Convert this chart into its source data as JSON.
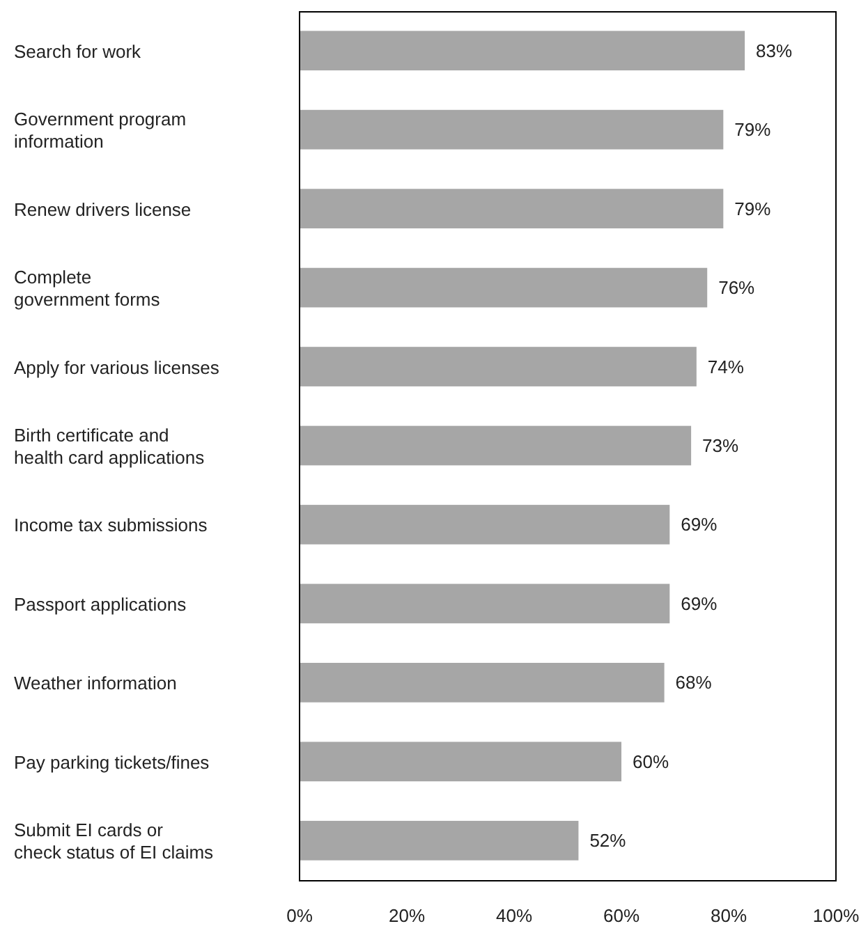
{
  "chart_data": {
    "type": "bar",
    "orientation": "horizontal",
    "categories": [
      "Search for work",
      "Government program\ninformation",
      "Renew drivers license",
      "Complete\ngovernment forms",
      "Apply for various licenses",
      "Birth certificate and\nhealth card applications",
      "Income tax submissions",
      "Passport applications",
      "Weather information",
      "Pay parking tickets/fines",
      "Submit EI cards or\ncheck status of EI claims"
    ],
    "values": [
      83,
      79,
      79,
      76,
      74,
      73,
      69,
      69,
      68,
      60,
      52
    ],
    "value_labels": [
      "83%",
      "79%",
      "79%",
      "76%",
      "74%",
      "73%",
      "69%",
      "69%",
      "68%",
      "60%",
      "52%"
    ],
    "color": "#a6a6a6",
    "xlim": [
      0,
      100
    ],
    "xticks": [
      {
        "value": 0,
        "label": "0%"
      },
      {
        "value": 20,
        "label": "20%"
      },
      {
        "value": 40,
        "label": "40%"
      },
      {
        "value": 60,
        "label": "60%"
      },
      {
        "value": 80,
        "label": "80%"
      },
      {
        "value": 100,
        "label": "100%"
      }
    ],
    "grid": false
  }
}
